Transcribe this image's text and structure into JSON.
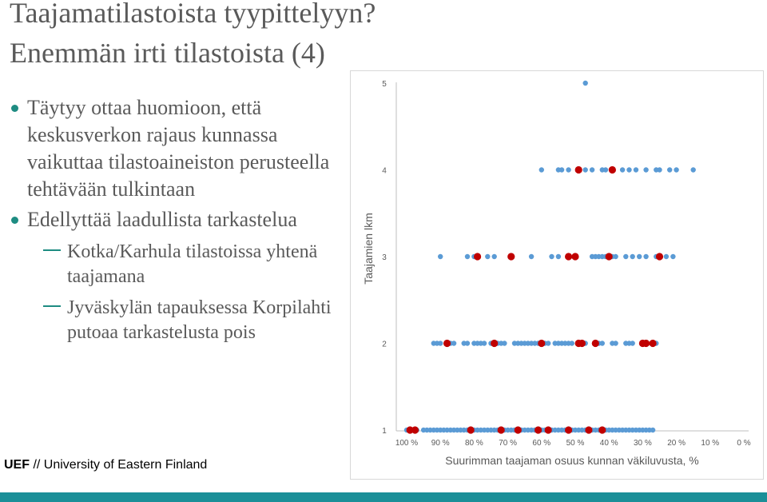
{
  "slide": {
    "title_line1": "Taajamatilastoista tyypittelyyn?",
    "title_line2": "Enemmän irti tilastoista (4)",
    "bullets": [
      {
        "text": "Täytyy ottaa huomioon, että keskusverkon rajaus kunnassa vaikuttaa tilastoaineiston perusteella tehtävään tulkintaan"
      },
      {
        "text": "Edellyttää laadullista tarkastelua"
      }
    ],
    "sub_bullets": [
      {
        "text": "Kotka/Karhula tilastoissa yhtenä taajamana"
      },
      {
        "text": "Jyväskylän tapauksessa Korpilahti putoaa tarkastelusta pois"
      }
    ],
    "footer_brand": "UEF",
    "footer_text": " // University of Eastern Finland"
  },
  "colors": {
    "blue_points": "#5b9bd5",
    "red_points": "#c00000",
    "accent_bar": "#1b8f98",
    "bullet": "#1e8c82"
  },
  "chart_data": {
    "type": "scatter",
    "title": "",
    "xlabel": "Suurimman taajaman osuus kunnan väkiluvusta, %",
    "ylabel": "Taajamien lkm",
    "x_reversed": true,
    "xlim": [
      100,
      0
    ],
    "ylim": [
      1,
      5
    ],
    "x_ticks": [
      {
        "value": 100,
        "label": "100 %"
      },
      {
        "value": 90,
        "label": "90 %"
      },
      {
        "value": 80,
        "label": "80 %"
      },
      {
        "value": 70,
        "label": "70 %"
      },
      {
        "value": 60,
        "label": "60 %"
      },
      {
        "value": 50,
        "label": "50 %"
      },
      {
        "value": 40,
        "label": "40 %"
      },
      {
        "value": 30,
        "label": "30 %"
      },
      {
        "value": 20,
        "label": "20 %"
      },
      {
        "value": 10,
        "label": "10 %"
      },
      {
        "value": 0,
        "label": "0 %"
      }
    ],
    "y_ticks": [
      {
        "value": 1,
        "label": "1"
      },
      {
        "value": 2,
        "label": "2"
      },
      {
        "value": 3,
        "label": "3"
      },
      {
        "value": 4,
        "label": "4"
      },
      {
        "value": 5,
        "label": "5"
      }
    ],
    "grid": false,
    "series": [
      {
        "color": "#5b9bd5",
        "points": [
          [
            100,
            1
          ],
          [
            99,
            1
          ],
          [
            98.5,
            1
          ],
          [
            98,
            1
          ],
          [
            97,
            1
          ],
          [
            95,
            1
          ],
          [
            94,
            1
          ],
          [
            93,
            1
          ],
          [
            92,
            1
          ],
          [
            91,
            1
          ],
          [
            90,
            1
          ],
          [
            89,
            1
          ],
          [
            88,
            1
          ],
          [
            87,
            1
          ],
          [
            86,
            1
          ],
          [
            85,
            1
          ],
          [
            84,
            1
          ],
          [
            83,
            1
          ],
          [
            82,
            1
          ],
          [
            81,
            1
          ],
          [
            80,
            1
          ],
          [
            79,
            1
          ],
          [
            78,
            1
          ],
          [
            77,
            1
          ],
          [
            76,
            1
          ],
          [
            75,
            1
          ],
          [
            74,
            1
          ],
          [
            73,
            1
          ],
          [
            72,
            1
          ],
          [
            71,
            1
          ],
          [
            70,
            1
          ],
          [
            69,
            1
          ],
          [
            68,
            1
          ],
          [
            67,
            1
          ],
          [
            66,
            1
          ],
          [
            65,
            1
          ],
          [
            64,
            1
          ],
          [
            63,
            1
          ],
          [
            62,
            1
          ],
          [
            61,
            1
          ],
          [
            60,
            1
          ],
          [
            59,
            1
          ],
          [
            58,
            1
          ],
          [
            57,
            1
          ],
          [
            56,
            1
          ],
          [
            55,
            1
          ],
          [
            54,
            1
          ],
          [
            53,
            1
          ],
          [
            52,
            1
          ],
          [
            51,
            1
          ],
          [
            50,
            1
          ],
          [
            49,
            1
          ],
          [
            48,
            1
          ],
          [
            47,
            1
          ],
          [
            46,
            1
          ],
          [
            45,
            1
          ],
          [
            44,
            1
          ],
          [
            43,
            1
          ],
          [
            42,
            1
          ],
          [
            41,
            1
          ],
          [
            40,
            1
          ],
          [
            39,
            1
          ],
          [
            38,
            1
          ],
          [
            37,
            1
          ],
          [
            36,
            1
          ],
          [
            35,
            1
          ],
          [
            34,
            1
          ],
          [
            33,
            1
          ],
          [
            32,
            1
          ],
          [
            31,
            1
          ],
          [
            30,
            1
          ],
          [
            29,
            1
          ],
          [
            28,
            1
          ],
          [
            27,
            1
          ],
          [
            92,
            2
          ],
          [
            91,
            2
          ],
          [
            90,
            2
          ],
          [
            88,
            2
          ],
          [
            87,
            2
          ],
          [
            86,
            2
          ],
          [
            83,
            2
          ],
          [
            82,
            2
          ],
          [
            80,
            2
          ],
          [
            79,
            2
          ],
          [
            78,
            2
          ],
          [
            77,
            2
          ],
          [
            75,
            2
          ],
          [
            74,
            2
          ],
          [
            73,
            2
          ],
          [
            72,
            2
          ],
          [
            71,
            2
          ],
          [
            68,
            2
          ],
          [
            67,
            2
          ],
          [
            66,
            2
          ],
          [
            65,
            2
          ],
          [
            64,
            2
          ],
          [
            63,
            2
          ],
          [
            62,
            2
          ],
          [
            61,
            2
          ],
          [
            60,
            2
          ],
          [
            59,
            2
          ],
          [
            58,
            2
          ],
          [
            56,
            2
          ],
          [
            55,
            2
          ],
          [
            54,
            2
          ],
          [
            53,
            2
          ],
          [
            52,
            2
          ],
          [
            51,
            2
          ],
          [
            47,
            2
          ],
          [
            44,
            2
          ],
          [
            43,
            2
          ],
          [
            42,
            2
          ],
          [
            39,
            2
          ],
          [
            38,
            2
          ],
          [
            35,
            2
          ],
          [
            34,
            2
          ],
          [
            33,
            2
          ],
          [
            27,
            2
          ],
          [
            26,
            2
          ],
          [
            90,
            3
          ],
          [
            82,
            3
          ],
          [
            80,
            3
          ],
          [
            76,
            3
          ],
          [
            74,
            3
          ],
          [
            69,
            3
          ],
          [
            63,
            3
          ],
          [
            57,
            3
          ],
          [
            55,
            3
          ],
          [
            52,
            3
          ],
          [
            50,
            3
          ],
          [
            45,
            3
          ],
          [
            44,
            3
          ],
          [
            43,
            3
          ],
          [
            42,
            3
          ],
          [
            41,
            3
          ],
          [
            39,
            3
          ],
          [
            38,
            3
          ],
          [
            35,
            3
          ],
          [
            33,
            3
          ],
          [
            31,
            3
          ],
          [
            29,
            3
          ],
          [
            26,
            3
          ],
          [
            23,
            3
          ],
          [
            21,
            3
          ],
          [
            60,
            4
          ],
          [
            55,
            4
          ],
          [
            54,
            4
          ],
          [
            52,
            4
          ],
          [
            47,
            4
          ],
          [
            45,
            4
          ],
          [
            42,
            4
          ],
          [
            41,
            4
          ],
          [
            36,
            4
          ],
          [
            34,
            4
          ],
          [
            32,
            4
          ],
          [
            29,
            4
          ],
          [
            26,
            4
          ],
          [
            25,
            4
          ],
          [
            22,
            4
          ],
          [
            20,
            4
          ],
          [
            15,
            4
          ],
          [
            47,
            5
          ]
        ]
      },
      {
        "color": "#c00000",
        "points": [
          [
            99,
            1
          ],
          [
            97.5,
            1
          ],
          [
            81,
            1
          ],
          [
            72,
            1
          ],
          [
            67,
            1
          ],
          [
            61,
            1
          ],
          [
            58,
            1
          ],
          [
            52,
            1
          ],
          [
            46,
            1
          ],
          [
            42,
            1
          ],
          [
            88,
            2
          ],
          [
            74,
            2
          ],
          [
            60,
            2
          ],
          [
            49,
            2
          ],
          [
            48,
            2
          ],
          [
            44,
            2
          ],
          [
            30,
            2
          ],
          [
            29,
            2
          ],
          [
            27,
            2
          ],
          [
            79,
            3
          ],
          [
            69,
            3
          ],
          [
            52,
            3
          ],
          [
            50,
            3
          ],
          [
            40,
            3
          ],
          [
            25,
            3
          ],
          [
            49,
            4
          ],
          [
            39,
            4
          ]
        ]
      }
    ]
  }
}
